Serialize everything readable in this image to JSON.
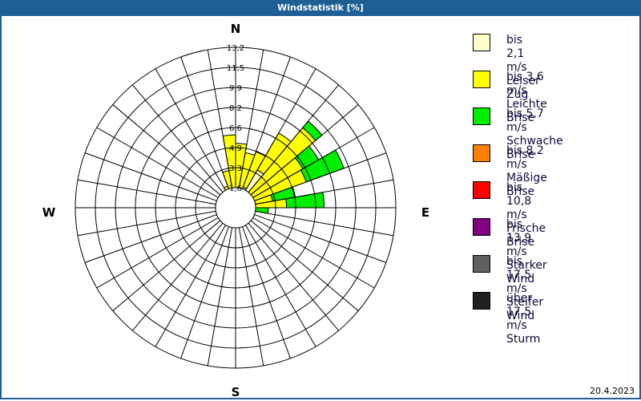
{
  "window": {
    "title": "Windstatistik [%]",
    "date": "20.4.2023"
  },
  "compass": {
    "n": "N",
    "e": "E",
    "s": "S",
    "w": "W"
  },
  "legend": [
    {
      "line1": "bis 2,1 m/s",
      "line2": "Leiser Zug",
      "color": "#ffffc8"
    },
    {
      "line1": "bis 3,6 m/s",
      "line2": "Leichte Brise",
      "color": "#ffff00"
    },
    {
      "line1": "bis 5,7 m/s",
      "line2": "Schwache Brise",
      "color": "#00ee00"
    },
    {
      "line1": "bis 8,2 m/s",
      "line2": "Mäßige Brise",
      "color": "#ff8000"
    },
    {
      "line1": "bis 10,8 m/s",
      "line2": "Frische Brise",
      "color": "#ff0000"
    },
    {
      "line1": "bis 13,9 m/s",
      "line2": "Starker Wind",
      "color": "#800080"
    },
    {
      "line1": "bis 17,5 m/s",
      "line2": "Steifer Wind",
      "color": "#606060"
    },
    {
      "line1": "über 17,5 m/s",
      "line2": "Sturm",
      "color": "#202020"
    }
  ],
  "chart_data": {
    "type": "polar-bar (wind rose)",
    "title": "Windstatistik [%]",
    "unit": "%",
    "radial_ticks": [
      "1,6",
      "3,3",
      "4,9",
      "6,6",
      "8,2",
      "9,9",
      "11,5",
      "13,2"
    ],
    "rmax": 13.2,
    "sector_width_deg": 10,
    "series_names": [
      "Leiser Zug",
      "Leichte Brise",
      "Schwache Brise"
    ],
    "sectors": [
      {
        "from": 0,
        "cum": [
          0.8,
          5.3,
          5.3
        ]
      },
      {
        "from": 10,
        "cum": [
          1.0,
          4.6,
          4.6
        ]
      },
      {
        "from": 20,
        "cum": [
          1.8,
          4.9,
          4.9
        ]
      },
      {
        "from": 30,
        "cum": [
          3.6,
          7.1,
          7.1
        ]
      },
      {
        "from": 40,
        "cum": [
          1.2,
          8.6,
          9.3
        ]
      },
      {
        "from": 50,
        "cum": [
          1.0,
          6.4,
          7.9
        ]
      },
      {
        "from": 60,
        "cum": [
          1.0,
          6.2,
          9.5
        ]
      },
      {
        "from": 70,
        "cum": [
          0.8,
          3.1,
          5.0
        ]
      },
      {
        "from": 80,
        "cum": [
          0.9,
          4.2,
          7.3
        ]
      },
      {
        "from": 90,
        "cum": [
          0.5,
          1.5,
          2.7
        ]
      },
      {
        "from": 100,
        "cum": [
          0.4,
          0.9,
          0.9
        ]
      },
      {
        "from": 110,
        "cum": [
          0.4,
          1.3,
          1.3
        ]
      },
      {
        "from": 120,
        "cum": [
          0.3,
          0.9,
          0.9
        ]
      },
      {
        "from": 130,
        "cum": [
          0.2,
          0.4,
          0.4
        ]
      },
      {
        "from": 140,
        "cum": [
          0.2,
          0.3,
          0.3
        ]
      },
      {
        "from": 150,
        "cum": [
          0.2,
          0.2,
          0.2
        ]
      },
      {
        "from": 160,
        "cum": [
          0.1,
          0.1,
          0.1
        ]
      },
      {
        "from": 170,
        "cum": [
          0.1,
          0.1,
          0.1
        ]
      },
      {
        "from": 180,
        "cum": [
          0.1,
          0.1,
          0.1
        ]
      },
      {
        "from": 190,
        "cum": [
          0.1,
          0.1,
          0.1
        ]
      },
      {
        "from": 200,
        "cum": [
          0.1,
          0.1,
          0.1
        ]
      },
      {
        "from": 210,
        "cum": [
          0.1,
          0.1,
          0.1
        ]
      },
      {
        "from": 220,
        "cum": [
          0.1,
          0.1,
          0.1
        ]
      },
      {
        "from": 230,
        "cum": [
          0.1,
          0.1,
          0.1
        ]
      },
      {
        "from": 240,
        "cum": [
          0.1,
          0.1,
          0.1
        ]
      },
      {
        "from": 250,
        "cum": [
          0.1,
          0.1,
          0.1
        ]
      },
      {
        "from": 260,
        "cum": [
          0.1,
          0.1,
          0.1
        ]
      },
      {
        "from": 270,
        "cum": [
          0.1,
          0.1,
          0.1
        ]
      },
      {
        "from": 280,
        "cum": [
          0.2,
          0.2,
          0.2
        ]
      },
      {
        "from": 290,
        "cum": [
          0.2,
          0.2,
          0.2
        ]
      },
      {
        "from": 300,
        "cum": [
          0.3,
          0.3,
          0.3
        ]
      },
      {
        "from": 310,
        "cum": [
          0.5,
          0.5,
          0.5
        ]
      },
      {
        "from": 320,
        "cum": [
          0.9,
          0.9,
          0.9
        ]
      },
      {
        "from": 330,
        "cum": [
          1.6,
          1.9,
          1.9
        ]
      },
      {
        "from": 340,
        "cum": [
          1.4,
          3.1,
          3.1
        ]
      },
      {
        "from": 350,
        "cum": [
          0.9,
          6.0,
          6.0
        ]
      }
    ]
  }
}
